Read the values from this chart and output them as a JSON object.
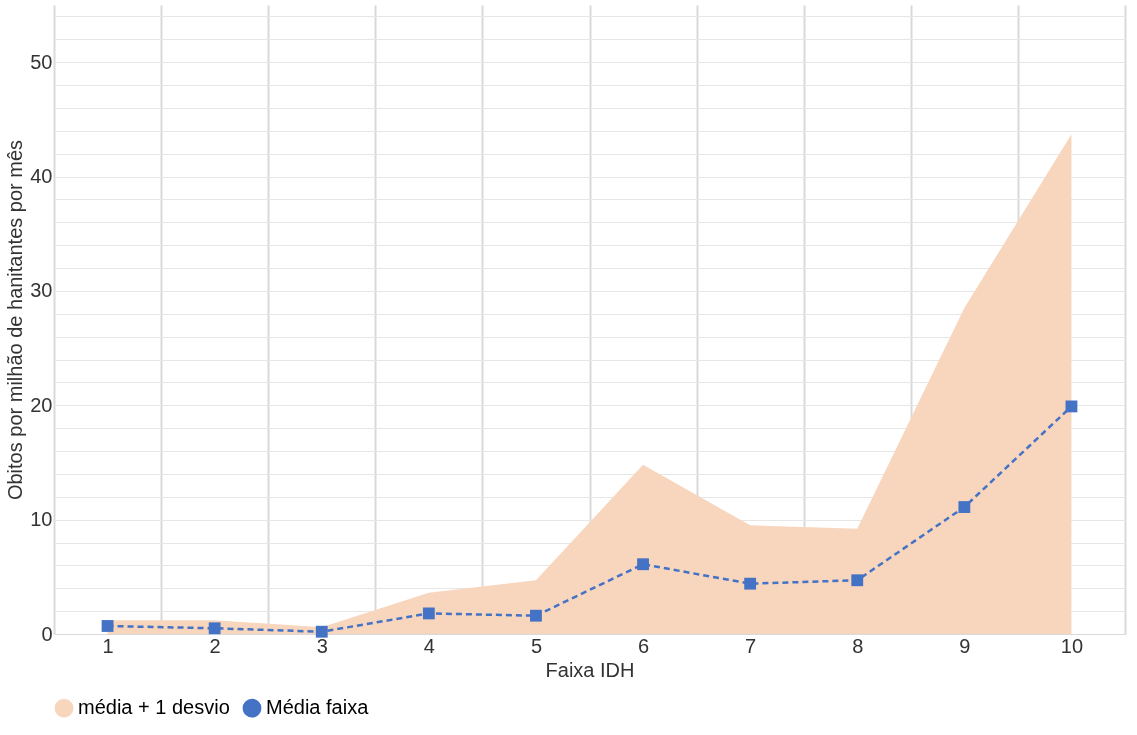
{
  "chart_data": {
    "type": "line",
    "xlabel": "Faixa IDH",
    "ylabel": "Obitos por milhão de hanitantes por mês",
    "categories": [
      "1",
      "2",
      "3",
      "4",
      "5",
      "6",
      "7",
      "8",
      "9",
      "10"
    ],
    "series": [
      {
        "name": "média + 1 desvio",
        "type": "area",
        "color": "#f8d5bd",
        "values": [
          1.2,
          1.2,
          0.6,
          3.6,
          4.7,
          14.8,
          9.5,
          9.2,
          28.5,
          43.7
        ]
      },
      {
        "name": "Média faixa",
        "color": "#4472c4",
        "marker": "square",
        "line_style": "dashed",
        "values": [
          0.7,
          0.5,
          0.2,
          1.8,
          1.6,
          6.1,
          4.4,
          4.7,
          11.1,
          19.9
        ]
      }
    ],
    "ylim": [
      0,
      55
    ],
    "yticks": [
      0,
      {
        "value": 2,
        "label": null
      },
      {
        "value": 4,
        "label": null
      },
      {
        "value": 6,
        "label": null
      },
      {
        "value": 8,
        "label": null
      },
      10,
      {
        "value": 12,
        "label": null
      },
      {
        "value": 14,
        "label": null
      },
      {
        "value": 16,
        "label": null
      },
      {
        "value": 18,
        "label": null
      },
      20,
      {
        "value": 22,
        "label": null
      },
      {
        "value": 24,
        "label": null
      },
      {
        "value": 26,
        "label": null
      },
      {
        "value": 28,
        "label": null
      },
      30,
      {
        "value": 32,
        "label": null
      },
      {
        "value": 34,
        "label": null
      },
      {
        "value": 36,
        "label": null
      },
      {
        "value": 38,
        "label": null
      },
      40,
      {
        "value": 42,
        "label": null
      },
      {
        "value": 44,
        "label": null
      },
      {
        "value": 46,
        "label": null
      },
      {
        "value": 48,
        "label": null
      },
      50,
      {
        "value": 52,
        "label": null
      },
      {
        "value": 54,
        "label": null
      }
    ],
    "grid": true,
    "legend": "bottom"
  }
}
